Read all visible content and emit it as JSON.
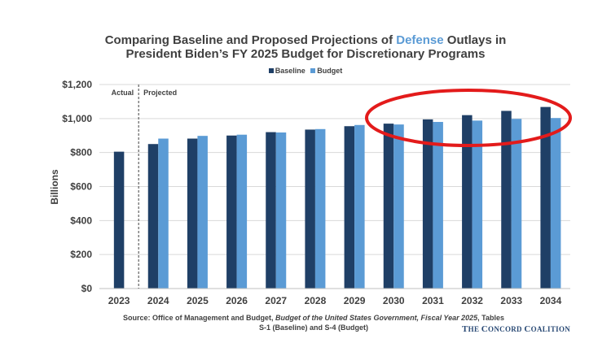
{
  "title": {
    "line1_before": "Comparing Baseline and Proposed Projections of ",
    "line1_highlight": "Defense",
    "line1_after": " Outlays in",
    "line2": "President Biden’s FY 2025 Budget for Discretionary Programs"
  },
  "legend": [
    {
      "name": "Baseline",
      "color": "#1f3f66"
    },
    {
      "name": "Budget",
      "color": "#5b9bd5"
    }
  ],
  "annotations": {
    "actual": "Actual",
    "projected": "Projected"
  },
  "source": {
    "prefix": "Source: Office of Management and Budget, ",
    "italic": "Budget of the United States Government, Fiscal Year 2025",
    "suffix": ", Tables S-1 (Baseline) and S-4 (Budget)"
  },
  "brand": {
    "t1": "T",
    "t2": "HE ",
    "c1": "C",
    "c2": "ONCORD ",
    "co1": "C",
    "co2": "OALITION"
  },
  "highlight_ellipse_color": "#e31b1b",
  "chart_data": {
    "type": "bar",
    "ylabel": "Billions",
    "ylim": [
      0,
      1200
    ],
    "yticks": [
      "$0",
      "$200",
      "$400",
      "$600",
      "$800",
      "$1,000",
      "$1,200"
    ],
    "yticks_values": [
      0,
      200,
      400,
      600,
      800,
      1000,
      1200
    ],
    "categories": [
      "2023",
      "2024",
      "2025",
      "2026",
      "2027",
      "2028",
      "2029",
      "2030",
      "2031",
      "2032",
      "2033",
      "2034"
    ],
    "series": [
      {
        "name": "Baseline",
        "color": "#1f3f66",
        "values": [
          805,
          850,
          882,
          900,
          920,
          935,
          955,
          970,
          995,
          1020,
          1045,
          1068
        ]
      },
      {
        "name": "Budget",
        "color": "#5b9bd5",
        "values": [
          null,
          882,
          898,
          905,
          918,
          938,
          962,
          965,
          980,
          988,
          998,
          1003
        ]
      }
    ],
    "grid": true,
    "legend_position": "top-center"
  }
}
